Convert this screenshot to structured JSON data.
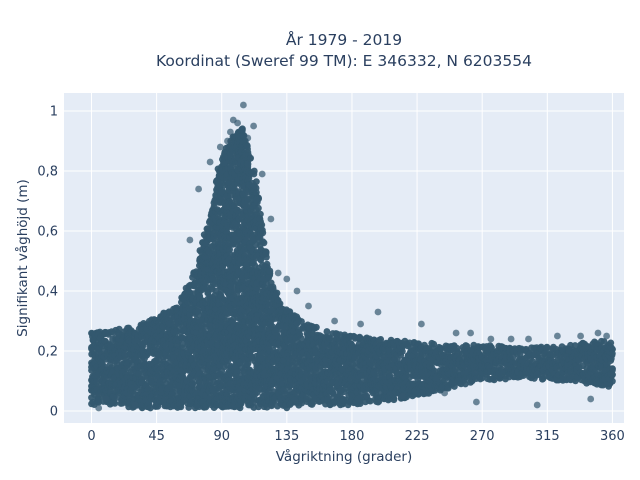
{
  "chart_data": {
    "type": "scatter",
    "title": "År 1979 - 2019",
    "subtitle": "Koordinat (Sweref 99 TM): E 346332, N 6203554",
    "xlabel": "Vågriktning (grader)",
    "ylabel": "Signifikant våghöjd (m)",
    "xlim": [
      -19,
      368
    ],
    "ylim": [
      -0.04,
      1.06
    ],
    "x_ticks": [
      0,
      45,
      90,
      135,
      180,
      225,
      270,
      315,
      360
    ],
    "x_tick_labels": [
      "0",
      "45",
      "90",
      "135",
      "180",
      "225",
      "270",
      "315",
      "360"
    ],
    "y_ticks": [
      0,
      0.2,
      0.4,
      0.6,
      0.8,
      1
    ],
    "y_tick_labels": [
      "0",
      "0,2",
      "0,4",
      "0,6",
      "0,8",
      "1"
    ],
    "grid": true,
    "legend": "none",
    "marker_color": "#34586f",
    "plot_background": "#e5ecf6",
    "envelope": {
      "x": [
        0,
        15,
        30,
        45,
        60,
        70,
        80,
        90,
        100,
        105,
        110,
        115,
        120,
        125,
        130,
        135,
        145,
        160,
        180,
        200,
        225,
        250,
        270,
        300,
        330,
        360
      ],
      "y_max": [
        0.26,
        0.27,
        0.28,
        0.31,
        0.36,
        0.45,
        0.62,
        0.85,
        0.93,
        0.95,
        0.86,
        0.72,
        0.55,
        0.43,
        0.37,
        0.34,
        0.3,
        0.27,
        0.25,
        0.24,
        0.23,
        0.22,
        0.22,
        0.21,
        0.22,
        0.24
      ],
      "y_min": [
        0.02,
        0.02,
        0.01,
        0.01,
        0.01,
        0.01,
        0.01,
        0.01,
        0.01,
        0.01,
        0.01,
        0.01,
        0.01,
        0.01,
        0.01,
        0.01,
        0.02,
        0.02,
        0.02,
        0.03,
        0.05,
        0.08,
        0.1,
        0.11,
        0.1,
        0.08
      ]
    },
    "outliers": {
      "x": [
        105,
        98,
        96,
        112,
        94,
        101,
        74,
        68,
        124,
        129,
        142,
        150,
        168,
        186,
        198,
        228,
        252,
        262,
        276,
        290,
        302,
        322,
        338,
        350,
        356,
        244,
        215,
        190,
        135,
        82,
        89,
        118,
        108,
        266,
        308,
        345,
        5,
        10,
        30
      ],
      "y": [
        1.02,
        0.97,
        0.93,
        0.95,
        0.9,
        0.96,
        0.74,
        0.57,
        0.64,
        0.46,
        0.4,
        0.35,
        0.3,
        0.29,
        0.33,
        0.29,
        0.26,
        0.26,
        0.24,
        0.24,
        0.24,
        0.25,
        0.25,
        0.26,
        0.25,
        0.06,
        0.05,
        0.05,
        0.44,
        0.83,
        0.88,
        0.79,
        0.91,
        0.03,
        0.02,
        0.04,
        0.01,
        0.04,
        0.02
      ]
    }
  }
}
